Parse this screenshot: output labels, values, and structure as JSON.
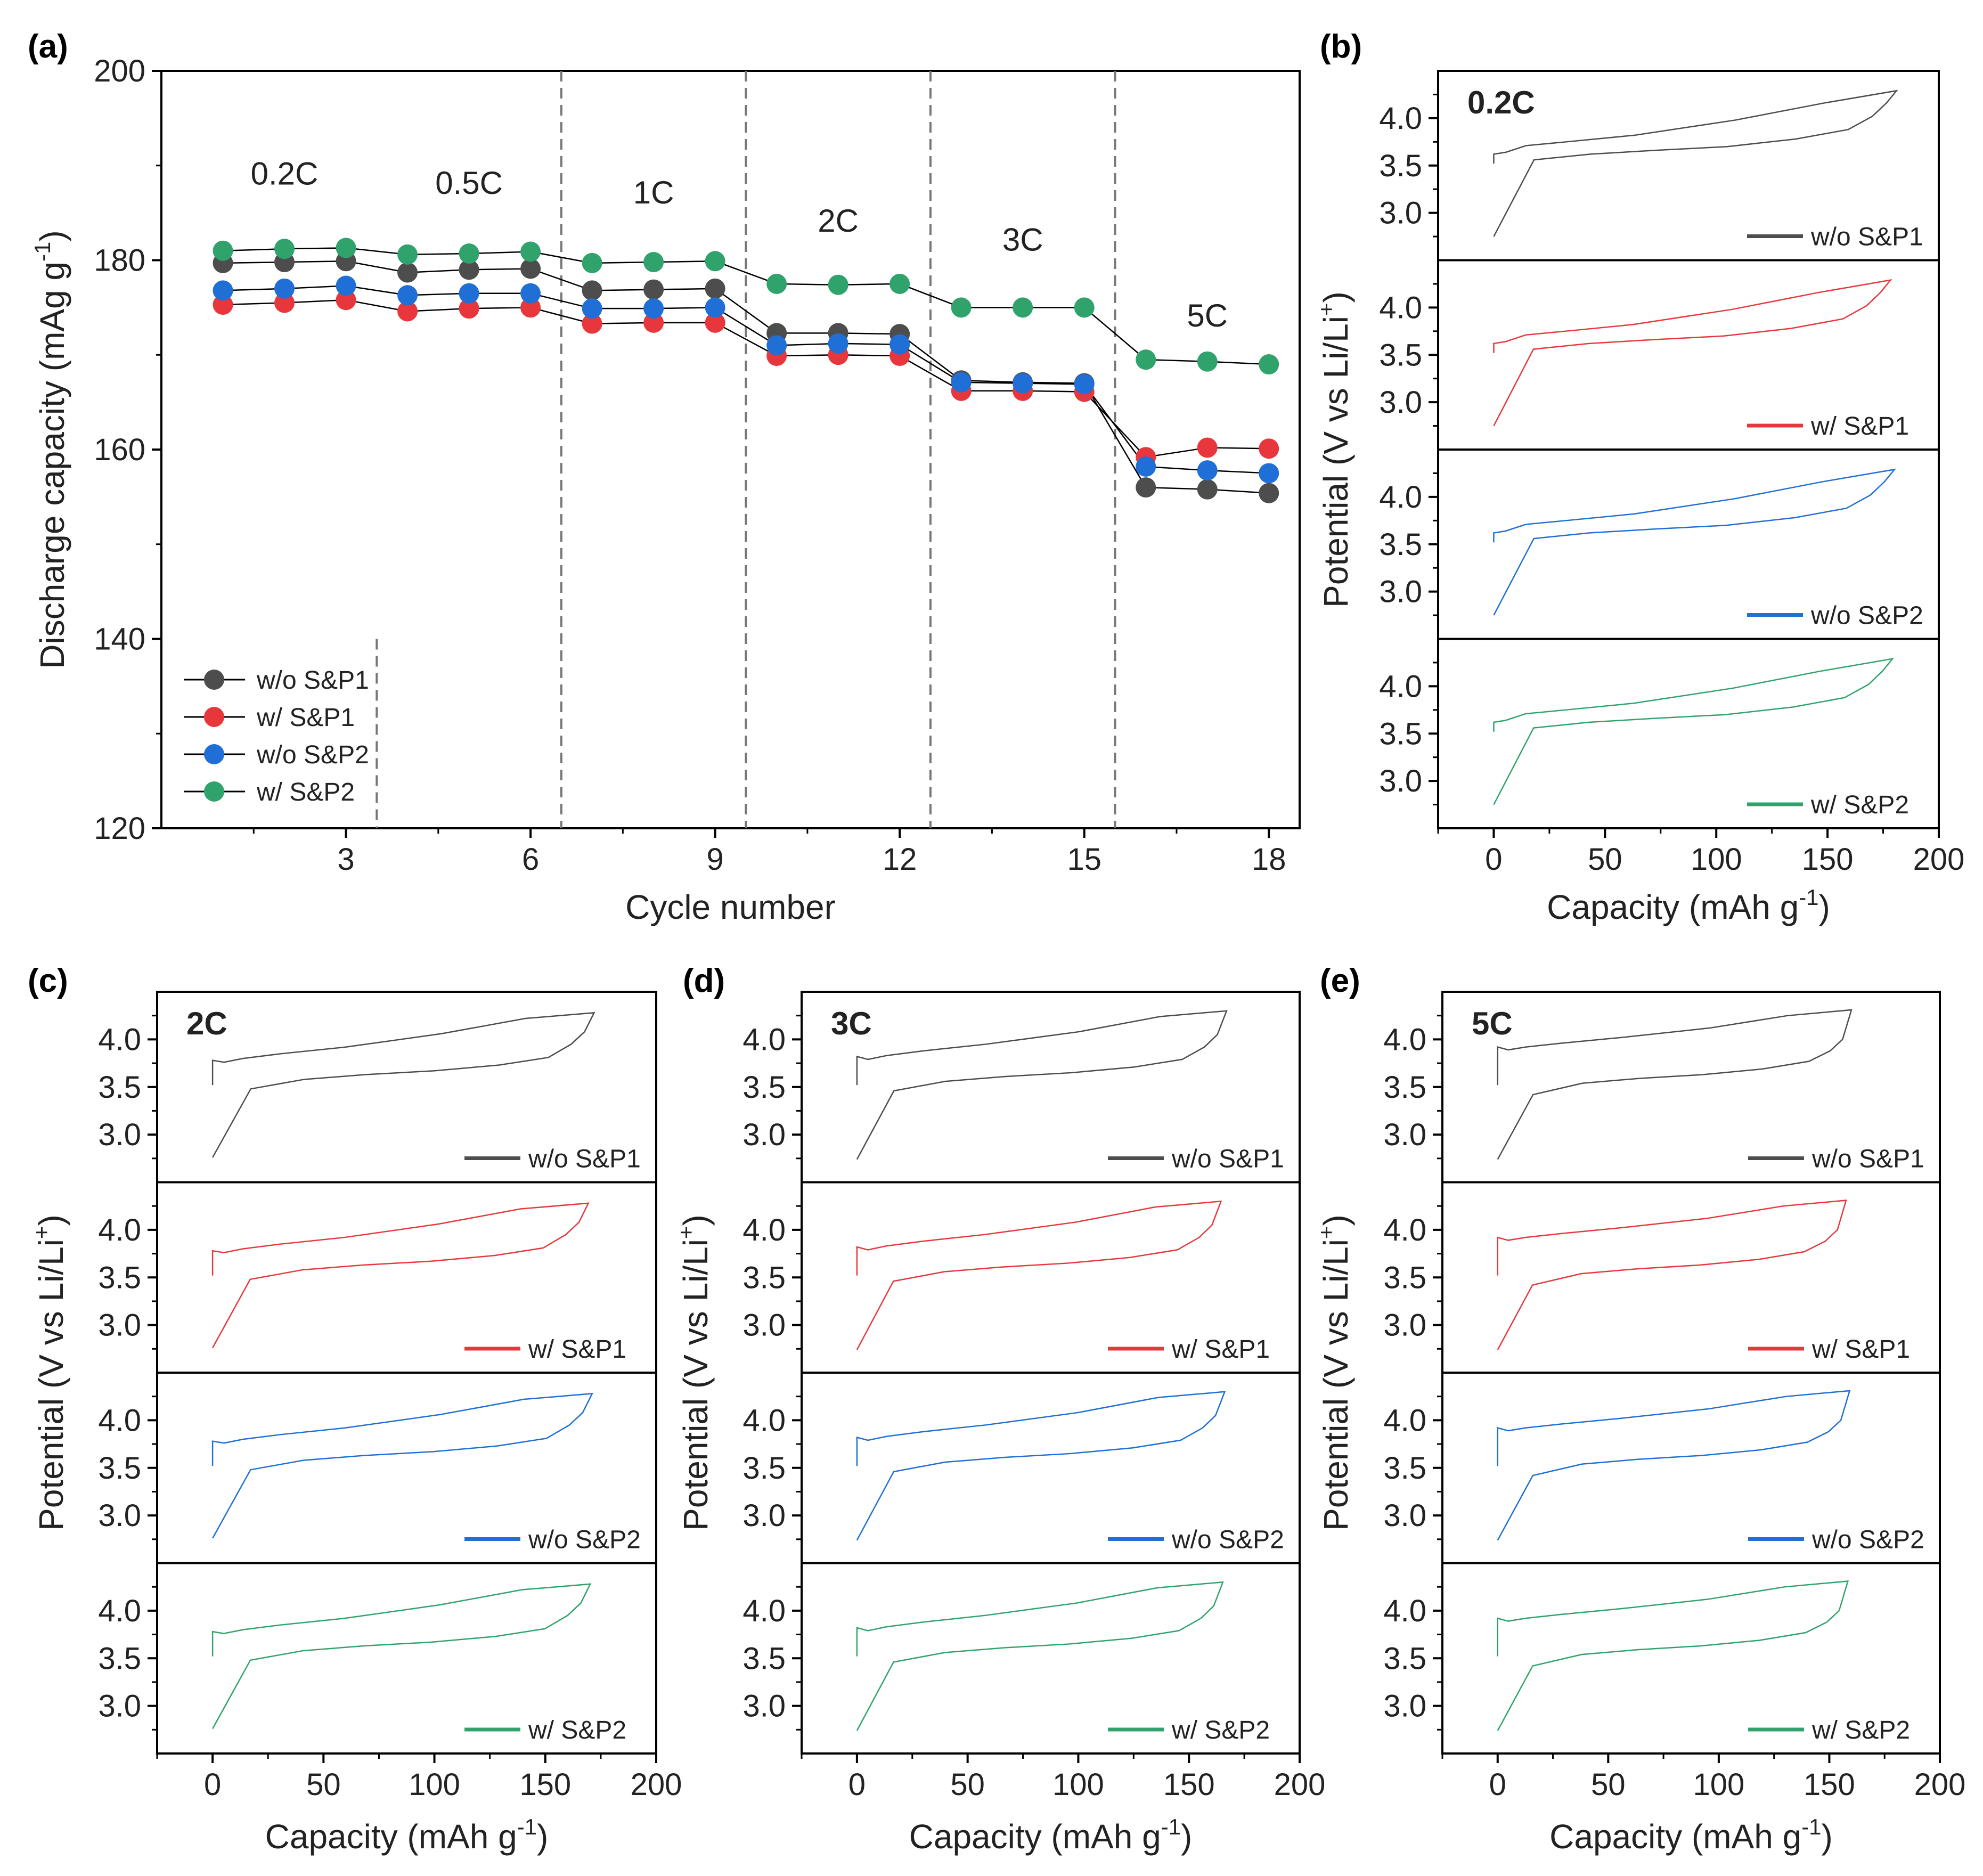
{
  "chart_data": [
    {
      "id": "a",
      "panel_label": "(a)",
      "type": "scatter",
      "xlabel": "Cycle number",
      "ylabel_main": "Discharge capacity (mAg g",
      "ylabel_sup": "-1",
      "ylabel_close": ")",
      "xlim": [
        0,
        18.5
      ],
      "ylim": [
        120,
        200
      ],
      "xticks": [
        3,
        6,
        9,
        12,
        15,
        18
      ],
      "yticks": [
        120,
        140,
        160,
        180,
        200
      ],
      "x": [
        1,
        2,
        3,
        4,
        5,
        6,
        7,
        8,
        9,
        10,
        11,
        12,
        13,
        14,
        15,
        16,
        17,
        18
      ],
      "rate_dividers": [
        3.5,
        6.5,
        9.5,
        12.5,
        15.5
      ],
      "rate_labels": [
        {
          "text": "0.2C",
          "x": 2,
          "y": 188
        },
        {
          "text": "0.5C",
          "x": 5,
          "y": 187
        },
        {
          "text": "1C",
          "x": 8,
          "y": 186
        },
        {
          "text": "2C",
          "x": 11,
          "y": 183
        },
        {
          "text": "3C",
          "x": 14,
          "y": 181
        },
        {
          "text": "5C",
          "x": 17,
          "y": 173
        }
      ],
      "series": [
        {
          "name": "w/o S&P1",
          "color": "#4d4d4d",
          "values": [
            179.7,
            179.8,
            179.9,
            178.7,
            179.0,
            179.1,
            176.8,
            176.9,
            177.0,
            172.3,
            172.3,
            172.2,
            167.3,
            167.1,
            167.0,
            156.0,
            155.8,
            155.4
          ]
        },
        {
          "name": "w/ S&P1",
          "color": "#e8373c",
          "values": [
            175.3,
            175.5,
            175.8,
            174.6,
            174.9,
            175.0,
            173.3,
            173.4,
            173.4,
            169.9,
            170.0,
            169.9,
            166.2,
            166.2,
            166.1,
            159.2,
            160.2,
            160.1
          ]
        },
        {
          "name": "w/o S&P2",
          "color": "#1f6fd6",
          "values": [
            176.8,
            177.0,
            177.3,
            176.3,
            176.5,
            176.5,
            174.9,
            174.9,
            175.0,
            171.0,
            171.2,
            171.1,
            167.1,
            167.0,
            166.9,
            158.2,
            157.8,
            157.5
          ]
        },
        {
          "name": "w/ S&P2",
          "color": "#2fa36b",
          "values": [
            181.0,
            181.2,
            181.3,
            180.6,
            180.7,
            180.9,
            179.7,
            179.8,
            179.9,
            177.5,
            177.4,
            177.5,
            175.0,
            175.0,
            175.0,
            169.5,
            169.3,
            169.0
          ]
        }
      ]
    },
    {
      "id": "b",
      "panel_label": "(b)",
      "type": "line",
      "rate": "0.2C",
      "capacity": 181,
      "charge_v": [
        3.62,
        3.64,
        3.71,
        3.75,
        3.82,
        3.98,
        4.16,
        4.29
      ],
      "discharge_v": [
        2.75,
        3.56,
        3.62,
        3.66,
        3.7,
        3.78,
        3.88,
        4.02,
        4.16,
        4.27
      ],
      "xlabel": "Capacity (mAh g",
      "xlabel_sup": "-1",
      "xlabel_close": ")",
      "ylabel_main": "Potential (V vs Li/Li",
      "ylabel_sup": "+",
      "ylabel_close": ")",
      "xlim": [
        -25,
        200
      ],
      "ylim": [
        2.5,
        4.5
      ],
      "xticks": [
        0,
        50,
        100,
        150,
        200
      ],
      "yticks": [
        3.0,
        3.5,
        4.0
      ],
      "traces": [
        {
          "name": "w/o S&P1",
          "color": "#4d4d4d"
        },
        {
          "name": "w/ S&P1",
          "color": "#e8373c"
        },
        {
          "name": "w/o S&P2",
          "color": "#1f6fd6"
        },
        {
          "name": "w/ S&P2",
          "color": "#2fa36b"
        }
      ]
    },
    {
      "id": "c",
      "panel_label": "(c)",
      "type": "line",
      "rate": "2C",
      "capacity": 172,
      "charge_v": [
        3.78,
        3.76,
        3.8,
        3.85,
        3.92,
        4.06,
        4.22,
        4.28
      ],
      "discharge_v": [
        2.76,
        3.48,
        3.58,
        3.63,
        3.67,
        3.73,
        3.81,
        3.95,
        4.08,
        4.2
      ],
      "xlabel": "Capacity (mAh g",
      "xlabel_sup": "-1",
      "xlabel_close": ")",
      "ylabel_main": "Potential (V vs Li/Li",
      "ylabel_sup": "+",
      "ylabel_close": ")",
      "xlim": [
        -25,
        200
      ],
      "ylim": [
        2.5,
        4.5
      ],
      "xticks": [
        0,
        50,
        100,
        150,
        200
      ],
      "yticks": [
        3.0,
        3.5,
        4.0
      ],
      "traces": [
        {
          "name": "w/o S&P1",
          "color": "#4d4d4d"
        },
        {
          "name": "w/ S&P1",
          "color": "#e8373c"
        },
        {
          "name": "w/o S&P2",
          "color": "#1f6fd6"
        },
        {
          "name": "w/ S&P2",
          "color": "#2fa36b"
        }
      ]
    },
    {
      "id": "d",
      "panel_label": "(d)",
      "type": "line",
      "rate": "3C",
      "capacity": 167,
      "charge_v": [
        3.82,
        3.79,
        3.83,
        3.88,
        3.95,
        4.08,
        4.24,
        4.3
      ],
      "discharge_v": [
        2.74,
        3.46,
        3.56,
        3.61,
        3.65,
        3.71,
        3.79,
        3.92,
        4.05,
        4.18
      ],
      "xlabel": "Capacity (mAh g",
      "xlabel_sup": "-1",
      "xlabel_close": ")",
      "ylabel_main": "Potential (V vs Li/Li",
      "ylabel_sup": "+",
      "ylabel_close": ")",
      "xlim": [
        -25,
        200
      ],
      "ylim": [
        2.5,
        4.5
      ],
      "xticks": [
        0,
        50,
        100,
        150,
        200
      ],
      "yticks": [
        3.0,
        3.5,
        4.0
      ],
      "traces": [
        {
          "name": "w/o S&P1",
          "color": "#4d4d4d"
        },
        {
          "name": "w/ S&P1",
          "color": "#e8373c"
        },
        {
          "name": "w/o S&P2",
          "color": "#1f6fd6"
        },
        {
          "name": "w/ S&P2",
          "color": "#2fa36b"
        }
      ]
    },
    {
      "id": "e",
      "panel_label": "(e)",
      "type": "line",
      "rate": "5C",
      "capacity": 160,
      "charge_v": [
        3.92,
        3.89,
        3.92,
        3.96,
        4.02,
        4.12,
        4.25,
        4.31
      ],
      "discharge_v": [
        2.74,
        3.42,
        3.54,
        3.59,
        3.63,
        3.69,
        3.77,
        3.88,
        4.0,
        4.12
      ],
      "xlabel": "Capacity (mAh g",
      "xlabel_sup": "-1",
      "xlabel_close": ")",
      "ylabel_main": "Potential (V vs Li/Li",
      "ylabel_sup": "+",
      "ylabel_close": ")",
      "xlim": [
        -25,
        200
      ],
      "ylim": [
        2.5,
        4.5
      ],
      "xticks": [
        0,
        50,
        100,
        150,
        200
      ],
      "yticks": [
        3.0,
        3.5,
        4.0
      ],
      "traces": [
        {
          "name": "w/o S&P1",
          "color": "#4d4d4d"
        },
        {
          "name": "w/ S&P1",
          "color": "#e8373c"
        },
        {
          "name": "w/o S&P2",
          "color": "#1f6fd6"
        },
        {
          "name": "w/ S&P2",
          "color": "#2fa36b"
        }
      ]
    }
  ]
}
